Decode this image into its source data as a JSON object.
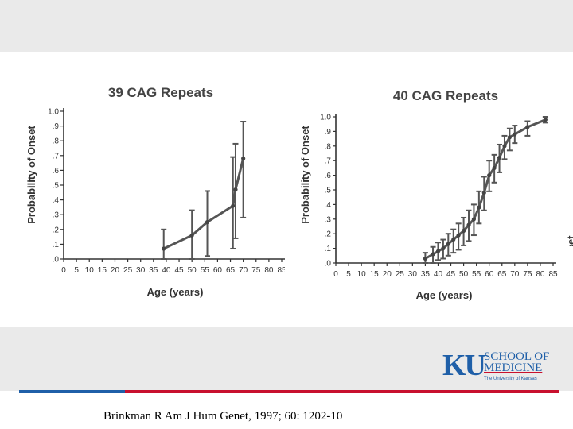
{
  "colors": {
    "band": "#eaeaea",
    "stripe_blue": "#1f5fa8",
    "stripe_red": "#c8102e",
    "ink": "#333333"
  },
  "edge_text": "Probability of Onset",
  "logo": {
    "ku": "KU",
    "line1": "SCHOOL OF",
    "line2": "MEDICINE",
    "line3": "The University of Kansas"
  },
  "citation": "Brinkman R Am J Hum Genet, 1997; 60: 1202-10",
  "chart_data": [
    {
      "type": "line",
      "title": "39 CAG Repeats",
      "xlabel": "Age (years)",
      "ylabel": "Probability of Onset",
      "xlim": [
        0,
        85
      ],
      "ylim": [
        0,
        1.0
      ],
      "xticks": [
        "0",
        "5",
        "10",
        "15",
        "20",
        "25",
        "30",
        "35",
        "40",
        "45",
        "50",
        "55",
        "60",
        "65",
        "70",
        "75",
        "80",
        "85"
      ],
      "yticks": [
        ".0",
        ".1",
        ".2",
        ".3",
        ".4",
        ".5",
        ".6",
        ".7",
        ".8",
        ".9",
        "1.0"
      ],
      "x": [
        39,
        50,
        56,
        66,
        67,
        70
      ],
      "y": [
        0.07,
        0.16,
        0.25,
        0.36,
        0.47,
        0.68
      ],
      "err_low": [
        0.0,
        0.0,
        0.02,
        0.07,
        0.14,
        0.28
      ],
      "err_high": [
        0.2,
        0.33,
        0.46,
        0.69,
        0.78,
        0.93
      ]
    },
    {
      "type": "line",
      "title": "40 CAG Repeats",
      "xlabel": "Age (years)",
      "ylabel": "Probability of Onset",
      "xlim": [
        0,
        85
      ],
      "ylim": [
        0,
        1.0
      ],
      "xticks": [
        "0",
        "5",
        "10",
        "15",
        "20",
        "25",
        "30",
        "35",
        "40",
        "45",
        "50",
        "55",
        "60",
        "65",
        "70",
        "75",
        "80",
        "85"
      ],
      "yticks": [
        ".0",
        ".1",
        ".2",
        ".3",
        ".4",
        ".5",
        ".6",
        ".7",
        ".8",
        ".9",
        "1.0"
      ],
      "x": [
        35,
        38,
        40,
        42,
        44,
        46,
        48,
        50,
        52,
        54,
        56,
        58,
        60,
        62,
        64,
        66,
        68,
        70,
        75,
        82
      ],
      "y": [
        0.03,
        0.06,
        0.08,
        0.1,
        0.13,
        0.16,
        0.19,
        0.22,
        0.26,
        0.3,
        0.38,
        0.48,
        0.6,
        0.65,
        0.72,
        0.8,
        0.86,
        0.88,
        0.93,
        0.98
      ],
      "err_low": [
        0.0,
        0.0,
        0.02,
        0.03,
        0.05,
        0.07,
        0.09,
        0.12,
        0.15,
        0.19,
        0.27,
        0.36,
        0.49,
        0.55,
        0.62,
        0.71,
        0.77,
        0.82,
        0.87,
        0.96
      ],
      "err_high": [
        0.07,
        0.11,
        0.14,
        0.16,
        0.2,
        0.23,
        0.27,
        0.31,
        0.36,
        0.4,
        0.49,
        0.59,
        0.7,
        0.74,
        0.81,
        0.87,
        0.92,
        0.94,
        0.97,
        1.0
      ]
    }
  ]
}
